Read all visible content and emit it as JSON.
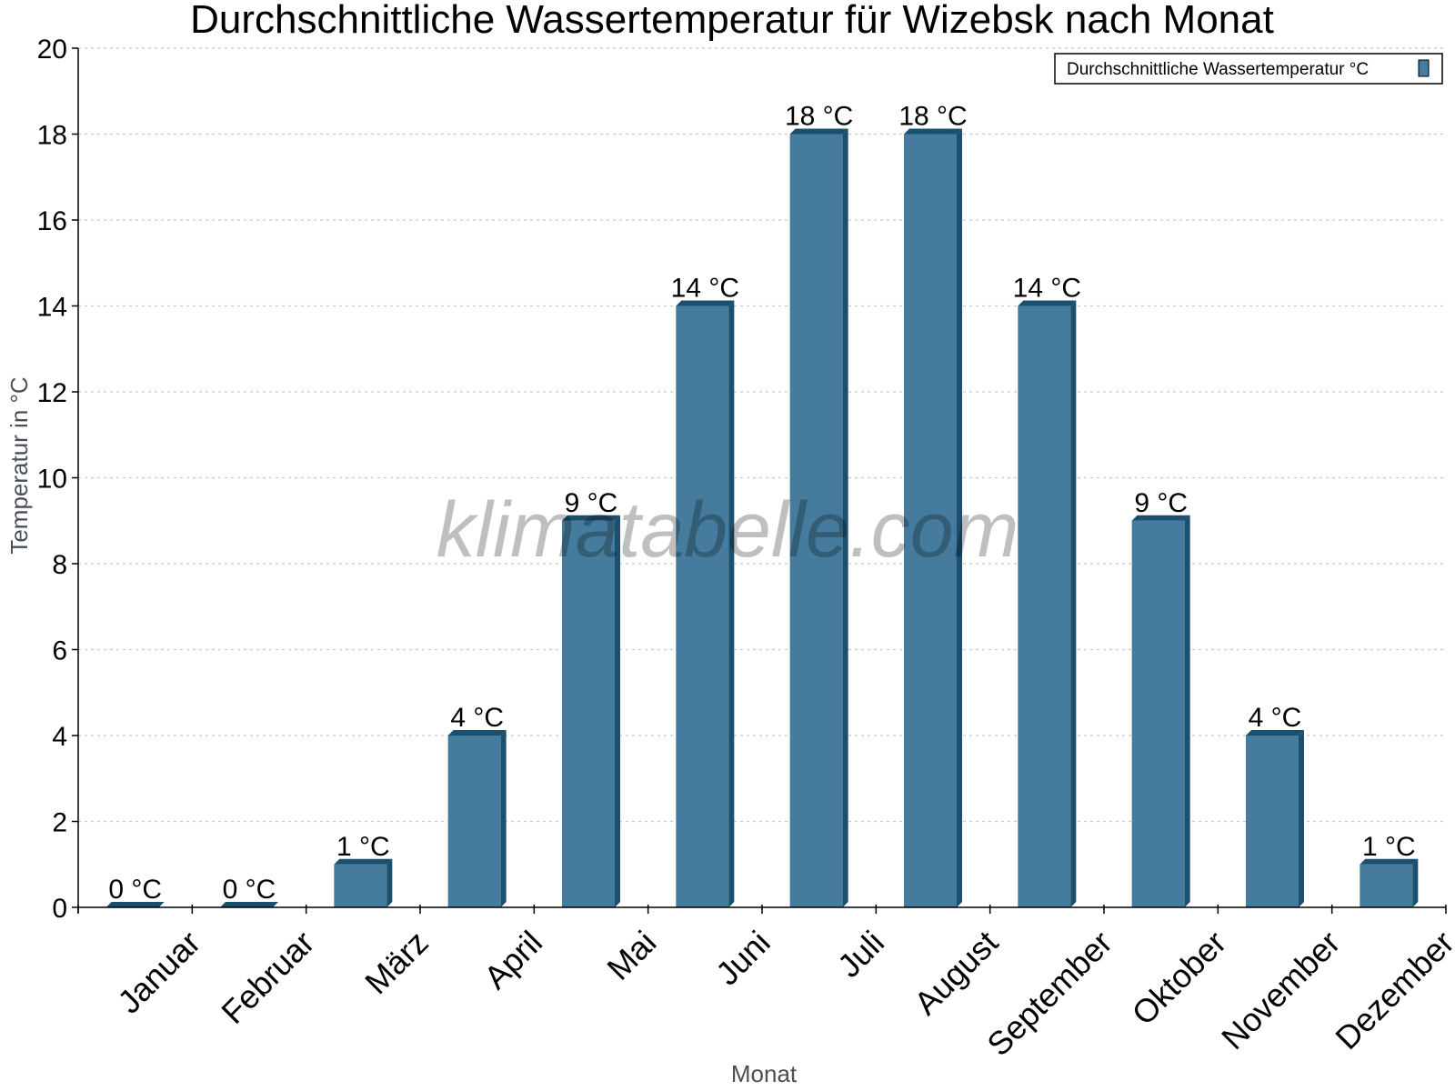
{
  "chart_data": {
    "type": "bar",
    "title": "Durchschnittliche Wassertemperatur für Wizebsk nach Monat",
    "xlabel": "Monat",
    "ylabel": "Temperatur in °C",
    "categories": [
      "Januar",
      "Februar",
      "März",
      "April",
      "Mai",
      "Juni",
      "Juli",
      "August",
      "September",
      "Oktober",
      "November",
      "Dezember"
    ],
    "series": [
      {
        "name": "Durchschnittliche Wassertemperatur °C",
        "values": [
          0,
          0,
          1,
          4,
          9,
          14,
          18,
          18,
          14,
          9,
          4,
          1
        ],
        "labels": [
          "0 °C",
          "0 °C",
          "1 °C",
          "4 °C",
          "9 °C",
          "14 °C",
          "18 °C",
          "18 °C",
          "14 °C",
          "9 °C",
          "4 °C",
          "1 °C"
        ],
        "color": "#457b9d",
        "side_color": "#1b4f6e"
      }
    ],
    "ylim": [
      0,
      20
    ],
    "yticks": [
      0,
      2,
      4,
      6,
      8,
      10,
      12,
      14,
      16,
      18,
      20
    ],
    "grid": true,
    "legend_position": "top-right",
    "watermark": "klimatabelle.com"
  }
}
